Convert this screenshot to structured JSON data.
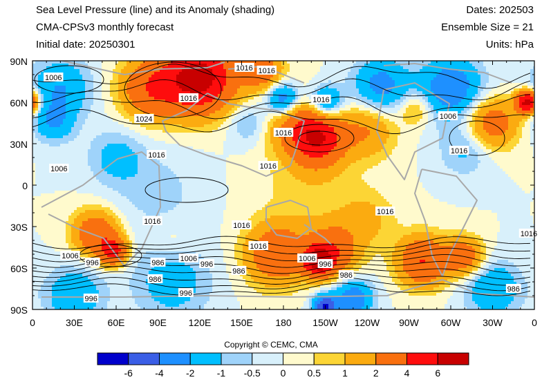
{
  "header": {
    "title": "Sea Level Pressure (line) and its Anomaly (shading)",
    "subtitle": "CMA-CPSv3 monthly forecast",
    "initial": "Initial date: 20250301",
    "dates": "Dates: 202503",
    "ensemble": "Ensemble Size = 21",
    "units": "Units: hPa"
  },
  "copyright": "Copyright © CEMC, CMA",
  "colors": {
    "land_outline": "#a8a8a8",
    "contour": "#000000",
    "levels": [
      "#0000cc",
      "#3a5ee6",
      "#1e90ff",
      "#00bfff",
      "#9fd3fa",
      "#d8f0fb",
      "#fffacd",
      "#fcd535",
      "#fbab10",
      "#f9700f",
      "#fe0d0d",
      "#c80000"
    ]
  },
  "chart_data": {
    "type": "heatmap",
    "x_ticks": [
      "0",
      "30E",
      "60E",
      "90E",
      "120E",
      "150E",
      "180",
      "150W",
      "120W",
      "90W",
      "60W",
      "30W",
      "0"
    ],
    "y_ticks": [
      "90N",
      "60N",
      "30N",
      "0",
      "30S",
      "60S",
      "90S"
    ],
    "xlim": [
      0,
      360
    ],
    "ylim": [
      -90,
      90
    ],
    "colorbar": {
      "labels": [
        "-6",
        "-4",
        "-2",
        "-1",
        "-0.5",
        "0",
        "0.5",
        "1",
        "2",
        "4",
        "6"
      ],
      "bounds": [
        -6,
        -4,
        -2,
        -1,
        -0.5,
        0,
        0.5,
        1,
        2,
        4,
        6
      ]
    },
    "anomaly_centers": [
      {
        "lon": 120,
        "lat": 78,
        "value": 7,
        "r": 25
      },
      {
        "lon": 85,
        "lat": 70,
        "value": 3.5,
        "r": 22
      },
      {
        "lon": 165,
        "lat": 83,
        "value": 3,
        "r": 14
      },
      {
        "lon": 205,
        "lat": 33,
        "value": 5,
        "r": 18
      },
      {
        "lon": 190,
        "lat": 45,
        "value": 2.5,
        "r": 22
      },
      {
        "lon": 240,
        "lat": 40,
        "value": 2,
        "r": 20
      },
      {
        "lon": 355,
        "lat": 60,
        "value": 7,
        "r": 8
      },
      {
        "lon": 330,
        "lat": 45,
        "value": 3,
        "r": 18
      },
      {
        "lon": 275,
        "lat": 55,
        "value": 1.5,
        "r": 12
      },
      {
        "lon": 180,
        "lat": 62,
        "value": -3.5,
        "r": 12
      },
      {
        "lon": 210,
        "lat": 60,
        "value": -3,
        "r": 12
      },
      {
        "lon": 250,
        "lat": 72,
        "value": -2.5,
        "r": 20
      },
      {
        "lon": 300,
        "lat": 70,
        "value": -3,
        "r": 22
      },
      {
        "lon": 20,
        "lat": 70,
        "value": -2,
        "r": 22
      },
      {
        "lon": 15,
        "lat": 45,
        "value": -1.8,
        "r": 14
      },
      {
        "lon": 155,
        "lat": 45,
        "value": -1.2,
        "r": 15
      },
      {
        "lon": 310,
        "lat": 25,
        "value": -1.2,
        "r": 18
      },
      {
        "lon": 60,
        "lat": 20,
        "value": -1.3,
        "r": 20
      },
      {
        "lon": 90,
        "lat": -5,
        "value": -0.7,
        "r": 30
      },
      {
        "lon": 45,
        "lat": -35,
        "value": 3.5,
        "r": 16
      },
      {
        "lon": 58,
        "lat": -48,
        "value": 4.5,
        "r": 10
      },
      {
        "lon": 175,
        "lat": -50,
        "value": 3.5,
        "r": 22
      },
      {
        "lon": 205,
        "lat": -55,
        "value": 6,
        "r": 10
      },
      {
        "lon": 215,
        "lat": -48,
        "value": 3.5,
        "r": 18
      },
      {
        "lon": 280,
        "lat": -55,
        "value": 4,
        "r": 18
      },
      {
        "lon": 310,
        "lat": -52,
        "value": 3,
        "r": 14
      },
      {
        "lon": 240,
        "lat": -25,
        "value": 1.2,
        "r": 20
      },
      {
        "lon": 200,
        "lat": 0,
        "value": 0.8,
        "r": 35
      },
      {
        "lon": 100,
        "lat": -70,
        "value": -1.5,
        "r": 28
      },
      {
        "lon": 30,
        "lat": -80,
        "value": -2,
        "r": 20
      },
      {
        "lon": 210,
        "lat": -88,
        "value": -6,
        "r": 8
      },
      {
        "lon": 230,
        "lat": -82,
        "value": -3,
        "r": 14
      },
      {
        "lon": 330,
        "lat": -75,
        "value": -2,
        "r": 20
      },
      {
        "lon": 100,
        "lat": -40,
        "value": 0.6,
        "r": 15
      }
    ],
    "contour_labels": [
      {
        "text": "1016",
        "lon": 152,
        "lat": 85
      },
      {
        "text": "1016",
        "lon": 168,
        "lat": 83
      },
      {
        "text": "1006",
        "lon": 15,
        "lat": 78
      },
      {
        "text": "1016",
        "lon": 112,
        "lat": 63
      },
      {
        "text": "1016",
        "lon": 207,
        "lat": 62
      },
      {
        "text": "1024",
        "lon": 80,
        "lat": 48
      },
      {
        "text": "1016",
        "lon": 180,
        "lat": 38
      },
      {
        "text": "1006",
        "lon": 298,
        "lat": 50
      },
      {
        "text": "1016",
        "lon": 306,
        "lat": 25
      },
      {
        "text": "1016",
        "lon": 89,
        "lat": 22
      },
      {
        "text": "1016",
        "lon": 169,
        "lat": 14
      },
      {
        "text": "1006",
        "lon": 19,
        "lat": 12
      },
      {
        "text": "1016",
        "lon": 253,
        "lat": -19
      },
      {
        "text": "1016",
        "lon": 86,
        "lat": -26
      },
      {
        "text": "1016",
        "lon": 150,
        "lat": -29
      },
      {
        "text": "1016",
        "lon": -4,
        "lat": -35
      },
      {
        "text": "1016",
        "lon": 162,
        "lat": -44
      },
      {
        "text": "1006",
        "lon": 27,
        "lat": -51
      },
      {
        "text": "996",
        "lon": 43,
        "lat": -56
      },
      {
        "text": "1006",
        "lon": 112,
        "lat": -53
      },
      {
        "text": "996",
        "lon": 125,
        "lat": -57
      },
      {
        "text": "986",
        "lon": 90,
        "lat": -56
      },
      {
        "text": "986",
        "lon": 148,
        "lat": -62
      },
      {
        "text": "1006",
        "lon": 197,
        "lat": -53
      },
      {
        "text": "996",
        "lon": 210,
        "lat": -57
      },
      {
        "text": "986",
        "lon": 88,
        "lat": -68
      },
      {
        "text": "986",
        "lon": 225,
        "lat": -65
      },
      {
        "text": "996",
        "lon": 110,
        "lat": -78
      },
      {
        "text": "996",
        "lon": 42,
        "lat": -82
      },
      {
        "text": "986",
        "lon": 345,
        "lat": -75
      }
    ]
  }
}
